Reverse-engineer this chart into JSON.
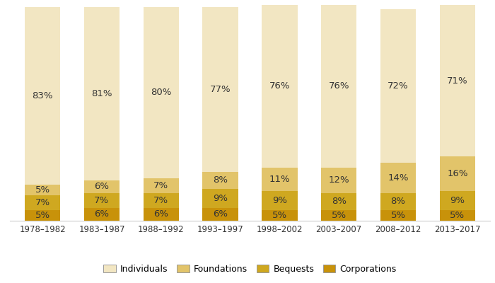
{
  "categories": [
    "1978–1982",
    "1983–1987",
    "1988–1992",
    "1993–1997",
    "1998–2002",
    "2003–2007",
    "2008–2012",
    "2013–2017"
  ],
  "series": {
    "Corporations": [
      5,
      6,
      6,
      6,
      5,
      5,
      5,
      5
    ],
    "Bequests": [
      7,
      7,
      7,
      9,
      9,
      8,
      8,
      9
    ],
    "Foundations": [
      5,
      6,
      7,
      8,
      11,
      12,
      14,
      16
    ],
    "Individuals": [
      83,
      81,
      80,
      77,
      76,
      76,
      72,
      71
    ]
  },
  "colors": {
    "Corporations": "#C8920A",
    "Bequests": "#CFA820",
    "Foundations": "#E2C46A",
    "Individuals": "#F2E6C2"
  },
  "bar_width": 0.6,
  "ylim": [
    0,
    102
  ],
  "legend_order": [
    "Individuals",
    "Foundations",
    "Bequests",
    "Corporations"
  ],
  "background_color": "#FFFFFF",
  "label_fontsize": 9.5,
  "legend_fontsize": 9,
  "tick_fontsize": 8.5
}
